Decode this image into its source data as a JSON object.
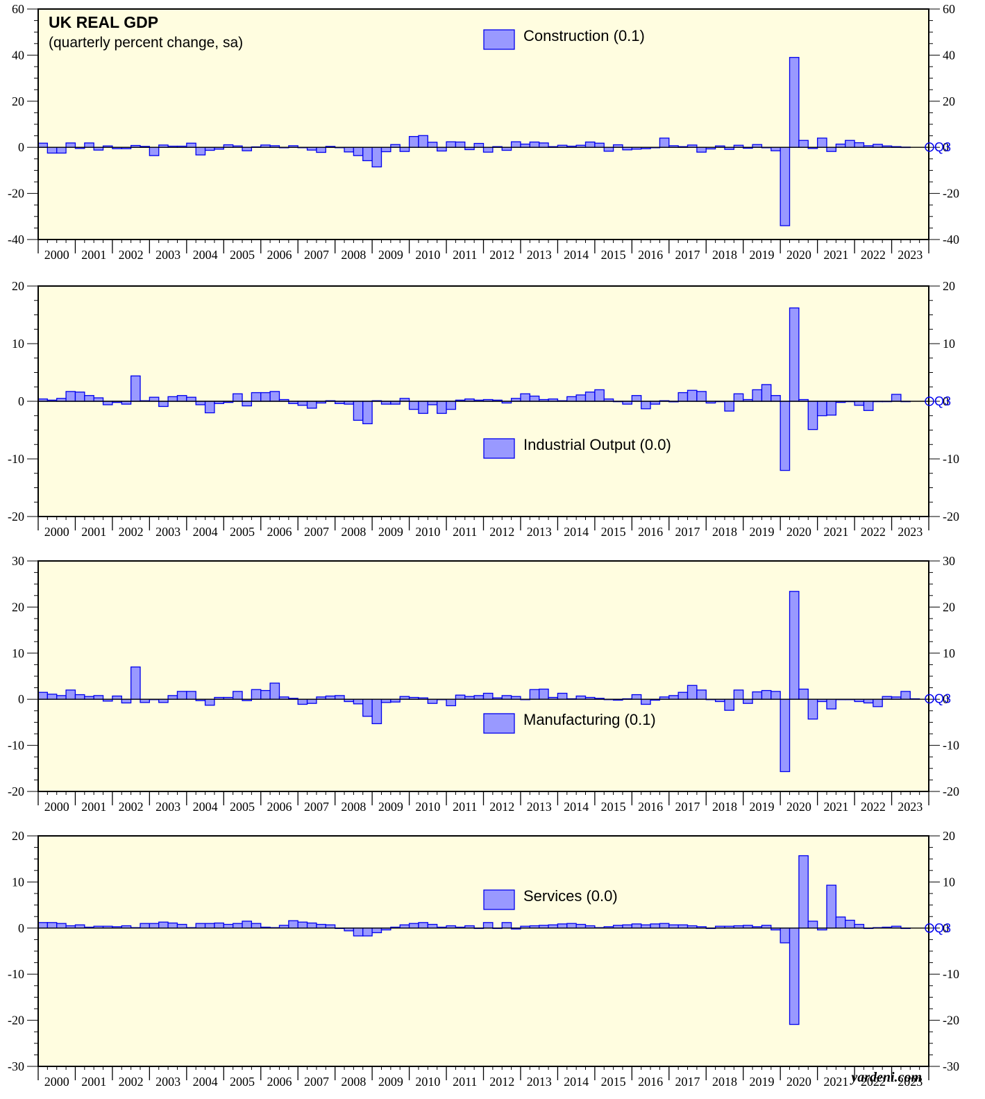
{
  "header": {
    "title": "UK REAL GDP",
    "subtitle": "(quarterly percent change, sa)"
  },
  "source": "yardeni.com",
  "end_label": "Q3",
  "colors": {
    "panel_bg": "#fffde0",
    "bar_fill": "#9999ff",
    "bar_stroke": "#0000ee",
    "axis": "#000000"
  },
  "chart_data": [
    {
      "type": "bar",
      "name": "Construction (0.1)",
      "x_start": "2000 Q1",
      "frequency": "quarterly",
      "x_tick_labels": [
        "2000",
        "2001",
        "2002",
        "2003",
        "2004",
        "2005",
        "2006",
        "2007",
        "2008",
        "2009",
        "2010",
        "2011",
        "2012",
        "2013",
        "2014",
        "2015",
        "2016",
        "2017",
        "2018",
        "2019",
        "2020",
        "2021",
        "2022",
        "2023"
      ],
      "ylim": [
        -40,
        60
      ],
      "yticks": [
        -40,
        -20,
        0,
        20,
        40,
        60
      ],
      "legend": "top-center",
      "values": [
        1.8,
        -2.5,
        -2.5,
        1.9,
        -0.5,
        1.9,
        -1.2,
        0.6,
        -0.6,
        -0.6,
        0.8,
        0.4,
        -3.6,
        1.0,
        0.5,
        0.5,
        1.8,
        -3.3,
        -1.3,
        -0.8,
        1.1,
        0.6,
        -1.5,
        0.2,
        1.0,
        0.7,
        -0.2,
        0.7,
        0.0,
        -1.2,
        -2.2,
        0.4,
        0.0,
        -2.0,
        -3.6,
        -5.8,
        -8.5,
        -1.9,
        1.2,
        -1.8,
        4.7,
        5.1,
        2.2,
        -1.6,
        2.4,
        2.3,
        -1.0,
        1.7,
        -2.1,
        0.3,
        -1.3,
        2.4,
        1.4,
        2.3,
        1.9,
        0.3,
        0.9,
        0.5,
        0.9,
        2.3,
        1.8,
        -1.7,
        1.1,
        -1.1,
        -0.8,
        -0.6,
        -0.2,
        4.0,
        0.7,
        0.3,
        1.0,
        -2.1,
        -0.7,
        0.6,
        -0.9,
        0.9,
        -0.4,
        1.2,
        -0.2,
        -1.5,
        -34.0,
        39.0,
        3.0,
        -0.5,
        4.0,
        -1.8,
        1.4,
        3.0,
        2.0,
        0.7,
        1.3,
        0.6,
        0.3,
        0.1
      ],
      "last_value": 0.1
    },
    {
      "type": "bar",
      "name": "Industrial Output (0.0)",
      "x_start": "2000 Q1",
      "frequency": "quarterly",
      "x_tick_labels": [
        "2000",
        "2001",
        "2002",
        "2003",
        "2004",
        "2005",
        "2006",
        "2007",
        "2008",
        "2009",
        "2010",
        "2011",
        "2012",
        "2013",
        "2014",
        "2015",
        "2016",
        "2017",
        "2018",
        "2019",
        "2020",
        "2021",
        "2022",
        "2023"
      ],
      "ylim": [
        -20,
        20
      ],
      "yticks": [
        -20,
        -10,
        0,
        10,
        20
      ],
      "legend": "center",
      "values": [
        0.4,
        0.2,
        0.5,
        1.7,
        1.6,
        1.0,
        0.6,
        -0.6,
        -0.2,
        -0.5,
        4.4,
        0.1,
        0.7,
        -0.9,
        0.8,
        1.0,
        0.7,
        -0.6,
        -2.0,
        -0.4,
        -0.2,
        1.3,
        -0.8,
        1.5,
        1.5,
        1.7,
        0.3,
        -0.4,
        -0.7,
        -1.2,
        -0.3,
        0.1,
        -0.4,
        -0.5,
        -3.3,
        -3.9,
        0.1,
        -0.5,
        -0.5,
        0.5,
        -1.4,
        -2.1,
        -0.6,
        -2.1,
        -1.4,
        0.2,
        0.4,
        0.2,
        0.3,
        0.2,
        -0.3,
        0.5,
        1.3,
        0.9,
        0.3,
        0.4,
        0.1,
        0.8,
        1.1,
        1.6,
        2.0,
        0.4,
        0.0,
        -0.5,
        1.0,
        -1.3,
        -0.5,
        0.1,
        -0.1,
        1.5,
        1.9,
        1.7,
        -0.3,
        0.0,
        -1.7,
        1.3,
        0.3,
        2.0,
        2.9,
        1.0,
        -12.0,
        16.2,
        0.3,
        -4.9,
        -2.5,
        -2.4,
        -0.2,
        0.0,
        -0.7,
        -1.6,
        0.0,
        0.0,
        1.2,
        0.0
      ],
      "last_value": 0.0
    },
    {
      "type": "bar",
      "name": "Manufacturing (0.1)",
      "x_start": "2000 Q1",
      "frequency": "quarterly",
      "x_tick_labels": [
        "2000",
        "2001",
        "2002",
        "2003",
        "2004",
        "2005",
        "2006",
        "2007",
        "2008",
        "2009",
        "2010",
        "2011",
        "2012",
        "2013",
        "2014",
        "2015",
        "2016",
        "2017",
        "2018",
        "2019",
        "2020",
        "2021",
        "2022",
        "2023"
      ],
      "ylim": [
        -20,
        30
      ],
      "yticks": [
        -20,
        -10,
        0,
        10,
        20,
        30
      ],
      "legend": "center",
      "values": [
        1.5,
        1.1,
        0.8,
        2.0,
        1.0,
        0.6,
        0.8,
        -0.4,
        0.7,
        -0.8,
        7.0,
        -0.7,
        0.0,
        -0.7,
        0.8,
        1.7,
        1.7,
        -0.3,
        -1.3,
        0.4,
        0.4,
        1.7,
        -0.3,
        2.1,
        1.9,
        3.5,
        0.5,
        0.2,
        -1.1,
        -0.9,
        0.5,
        0.7,
        0.8,
        -0.5,
        -1.0,
        -3.7,
        -5.3,
        -0.7,
        -0.6,
        0.6,
        0.4,
        0.3,
        -0.9,
        0.0,
        -1.4,
        0.9,
        0.6,
        0.8,
        1.3,
        0.3,
        0.8,
        0.6,
        0.0,
        2.1,
        2.2,
        0.4,
        1.3,
        0.1,
        0.7,
        0.4,
        0.2,
        0.0,
        -0.2,
        0.1,
        1.0,
        -1.1,
        -0.2,
        0.5,
        0.8,
        1.5,
        3.0,
        2.0,
        0.0,
        -0.5,
        -2.4,
        2.0,
        -0.9,
        1.6,
        1.9,
        1.7,
        -15.7,
        23.4,
        2.2,
        -4.3,
        -0.5,
        -2.1,
        0.0,
        0.0,
        -0.5,
        -0.8,
        -1.6,
        0.6,
        0.5,
        1.7,
        0.1
      ],
      "last_value": 0.1
    },
    {
      "type": "bar",
      "name": "Services (0.0)",
      "x_start": "2000 Q1",
      "frequency": "quarterly",
      "x_tick_labels": [
        "2000",
        "2001",
        "2002",
        "2003",
        "2004",
        "2005",
        "2006",
        "2007",
        "2008",
        "2009",
        "2010",
        "2011",
        "2012",
        "2013",
        "2014",
        "2015",
        "2016",
        "2017",
        "2018",
        "2019",
        "2020",
        "2021",
        "2022",
        "2023"
      ],
      "ylim": [
        -30,
        20
      ],
      "yticks": [
        -30,
        -20,
        -10,
        0,
        10,
        20
      ],
      "legend": "upper-center",
      "values": [
        1.2,
        1.2,
        1.0,
        0.5,
        0.7,
        0.2,
        0.4,
        0.4,
        0.3,
        0.5,
        0.1,
        1.0,
        1.0,
        1.3,
        1.1,
        0.8,
        0.1,
        1.0,
        1.0,
        1.1,
        0.8,
        1.0,
        1.5,
        1.0,
        0.2,
        0.1,
        0.6,
        1.6,
        1.3,
        1.1,
        0.8,
        0.7,
        0.0,
        -0.6,
        -1.7,
        -1.7,
        -1.0,
        -0.4,
        0.2,
        0.7,
        1.0,
        1.2,
        0.8,
        0.2,
        0.5,
        0.2,
        0.5,
        0.0,
        1.2,
        0.0,
        1.2,
        -0.2,
        0.4,
        0.5,
        0.6,
        0.7,
        0.9,
        1.0,
        0.8,
        0.5,
        0.1,
        0.3,
        0.6,
        0.7,
        0.9,
        0.7,
        0.9,
        1.0,
        0.7,
        0.7,
        0.5,
        0.3,
        0.0,
        0.4,
        0.4,
        0.5,
        0.6,
        0.3,
        0.6,
        -0.4,
        -3.2,
        -20.9,
        15.7,
        1.5,
        -0.4,
        9.3,
        2.4,
        1.7,
        0.8,
        0.0,
        0.1,
        0.2,
        0.4,
        0.0
      ],
      "last_value": 0.0
    }
  ]
}
